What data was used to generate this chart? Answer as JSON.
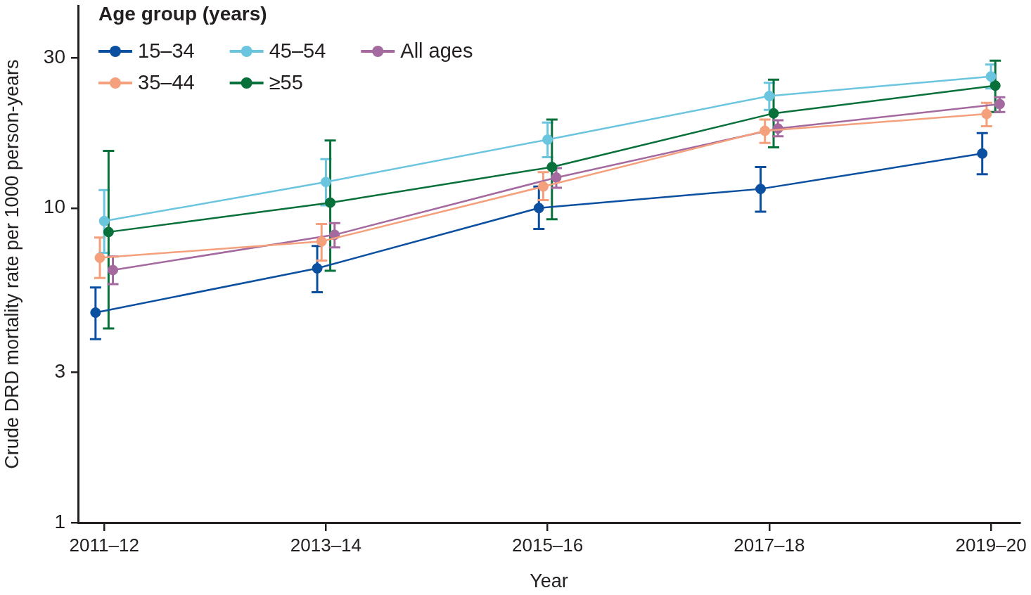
{
  "chart_data": {
    "type": "line",
    "xlabel": "Year",
    "ylabel": "Crude DRD mortality rate per 1000 person-years",
    "legend_title": "Age group (years)",
    "legend": "top left",
    "marker": "circle",
    "log": true,
    "ylim": [
      1,
      44
    ],
    "yticks": [
      1,
      3,
      10,
      30
    ],
    "categories": [
      "2011–12",
      "2013–14",
      "2015–16",
      "2017–18",
      "2019–20"
    ],
    "series": [
      {
        "name": "15–34",
        "color": "#0b4fa0",
        "values": [
          4.65,
          6.43,
          10.0,
          11.5,
          14.9
        ],
        "errors": [
          [
            3.83,
            5.59
          ],
          [
            5.4,
            7.57
          ],
          [
            8.58,
            11.7
          ],
          [
            9.73,
            13.5
          ],
          [
            12.8,
            17.3
          ]
        ]
      },
      {
        "name": "35–44",
        "color": "#f5a07c",
        "values": [
          6.95,
          7.83,
          11.7,
          17.6,
          19.9
        ],
        "errors": [
          [
            5.99,
            8.06
          ],
          [
            6.81,
            8.9
          ],
          [
            10.6,
            13.0
          ],
          [
            16.1,
            19.1
          ],
          [
            18.2,
            21.6
          ]
        ]
      },
      {
        "name": "45–54",
        "color": "#6cc5df",
        "values": [
          9.09,
          12.1,
          16.5,
          22.7,
          26.2
        ],
        "errors": [
          [
            7.2,
            11.4
          ],
          [
            10.2,
            14.3
          ],
          [
            14.5,
            18.7
          ],
          [
            20.5,
            25.0
          ],
          [
            24.0,
            28.6
          ]
        ]
      },
      {
        "name": "≥55",
        "color": "#08703a",
        "values": [
          8.39,
          10.4,
          13.5,
          20.0,
          24.5
        ],
        "errors": [
          [
            4.14,
            15.2
          ],
          [
            6.32,
            16.4
          ],
          [
            9.21,
            19.1
          ],
          [
            15.6,
            25.6
          ],
          [
            20.2,
            29.4
          ]
        ]
      },
      {
        "name": "All ages",
        "color": "#a4699f",
        "values": [
          6.35,
          8.22,
          12.5,
          17.9,
          21.4
        ],
        "errors": [
          [
            5.73,
            7.01
          ],
          [
            7.5,
            8.95
          ],
          [
            11.6,
            13.4
          ],
          [
            16.9,
            19.0
          ],
          [
            20.2,
            22.5
          ]
        ]
      }
    ]
  }
}
